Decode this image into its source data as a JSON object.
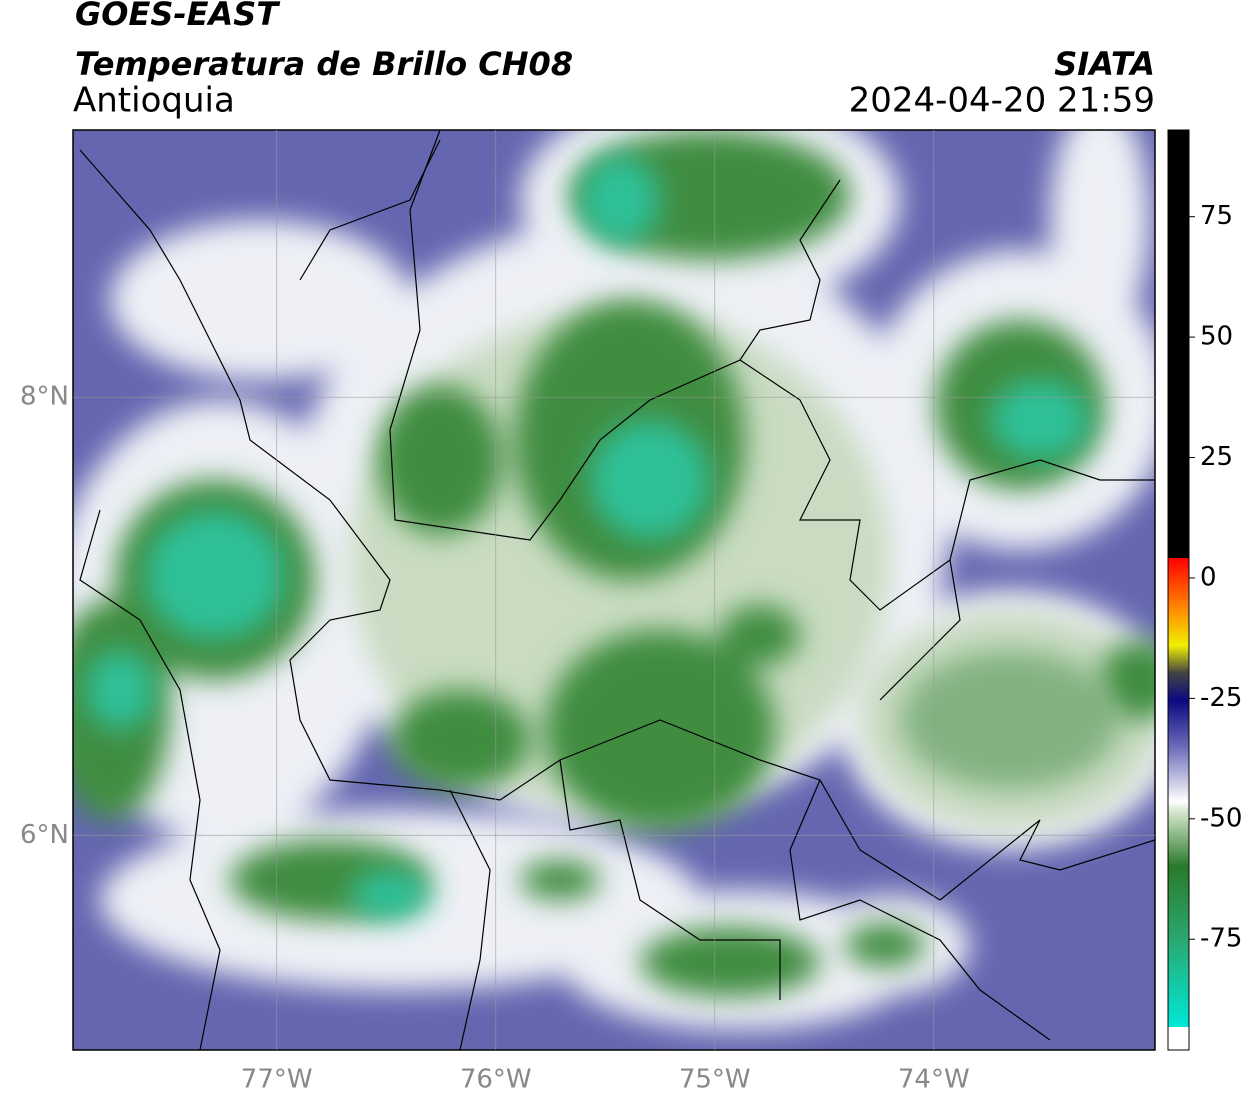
{
  "header": {
    "title": "GOES-EAST",
    "subtitle": "Temperatura de Brillo CH08",
    "region": "Antioquia",
    "source": "SIATA",
    "datetime": "2024-04-20 21:59"
  },
  "map": {
    "lon_range": [
      -77.93,
      -72.99
    ],
    "lat_range": [
      5.02,
      9.22
    ],
    "lon_ticks": [
      {
        "value": -77,
        "label": "77°W"
      },
      {
        "value": -76,
        "label": "76°W"
      },
      {
        "value": -75,
        "label": "75°W"
      },
      {
        "value": -74,
        "label": "74°W"
      }
    ],
    "lat_ticks": [
      {
        "value": 8,
        "label": "8°N"
      },
      {
        "value": 6,
        "label": "6°N"
      }
    ]
  },
  "colorbar": {
    "range": [
      -98,
      93
    ],
    "ticks": [
      75,
      50,
      25,
      0,
      -25,
      -50,
      -75
    ]
  }
}
